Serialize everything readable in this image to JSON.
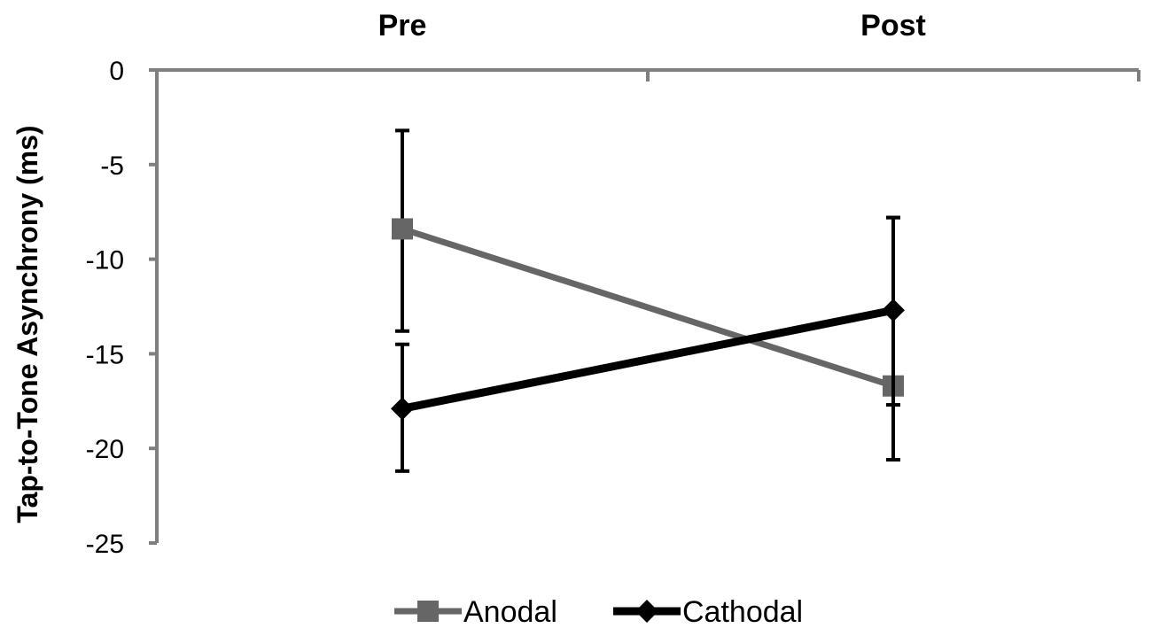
{
  "chart_data": {
    "type": "line",
    "categories": [
      "Pre",
      "Post"
    ],
    "ylabel": "Tap-to-Tone Asynchrony (ms)",
    "xlabel": "",
    "ylim": [
      -25,
      0
    ],
    "yticks": [
      0,
      -5,
      -10,
      -15,
      -20,
      -25
    ],
    "x_axis_position": "top",
    "grid": false,
    "legend": "bottom",
    "series": [
      {
        "name": "Anodal",
        "values": [
          -8.4,
          -16.7
        ],
        "error_plus": [
          5.2,
          8.9
        ],
        "error_minus": [
          5.4,
          1.0
        ],
        "color": "#666666",
        "marker": "square"
      },
      {
        "name": "Cathodal",
        "values": [
          -17.9,
          -12.7
        ],
        "error_plus": [
          3.4,
          4.9
        ],
        "error_minus": [
          3.3,
          7.9
        ],
        "color": "#000000",
        "marker": "diamond"
      }
    ]
  }
}
